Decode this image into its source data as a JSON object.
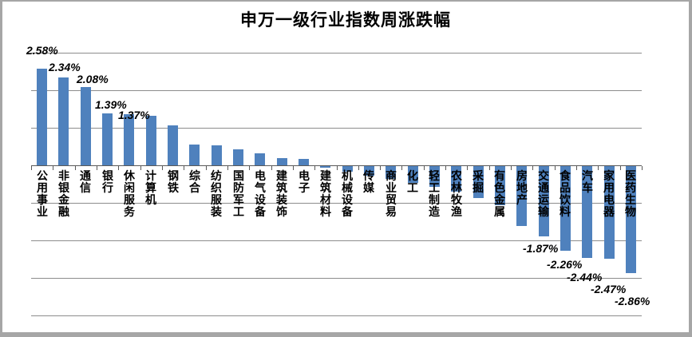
{
  "title": "申万一级行业指数周涨跌幅",
  "chart_data": {
    "type": "bar",
    "title": "申万一级行业指数周涨跌幅",
    "categories": [
      "公用事业",
      "非银金融",
      "通信",
      "银行",
      "休闲服务",
      "计算机",
      "钢铁",
      "综合",
      "纺织服装",
      "国防军工",
      "电气设备",
      "建筑装饰",
      "电子",
      "建筑材料",
      "机械设备",
      "传媒",
      "商业贸易",
      "化工",
      "轻工制造",
      "农林牧渔",
      "采掘",
      "有色金属",
      "房地产",
      "交通运输",
      "食品饮料",
      "汽车",
      "家用电器",
      "医药生物"
    ],
    "values": [
      2.58,
      2.34,
      2.08,
      1.39,
      1.37,
      1.31,
      1.06,
      0.56,
      0.53,
      0.42,
      0.31,
      0.2,
      0.18,
      -0.05,
      -0.15,
      -0.25,
      -0.35,
      -0.45,
      -0.55,
      -0.68,
      -0.85,
      -1.05,
      -1.6,
      -1.87,
      -2.26,
      -2.44,
      -2.47,
      -2.86
    ],
    "data_labels": [
      "2.58%",
      "2.34%",
      "2.08%",
      "1.39%",
      "1.37%",
      null,
      null,
      null,
      null,
      null,
      null,
      null,
      null,
      null,
      null,
      null,
      null,
      null,
      null,
      null,
      null,
      null,
      null,
      "-1.87%",
      "-2.26%",
      "-2.44%",
      "-2.47%",
      "-2.86%"
    ],
    "ylim": [
      -4,
      3
    ],
    "gridline_values": [
      3,
      2,
      1,
      0,
      -1,
      -2,
      -3,
      -4
    ],
    "grid": true,
    "legend": false,
    "xlabel": "",
    "ylabel": "",
    "bar_color": "#4F81BD",
    "gridline_color": "#8C8C8C",
    "axis_color": "#595959"
  }
}
